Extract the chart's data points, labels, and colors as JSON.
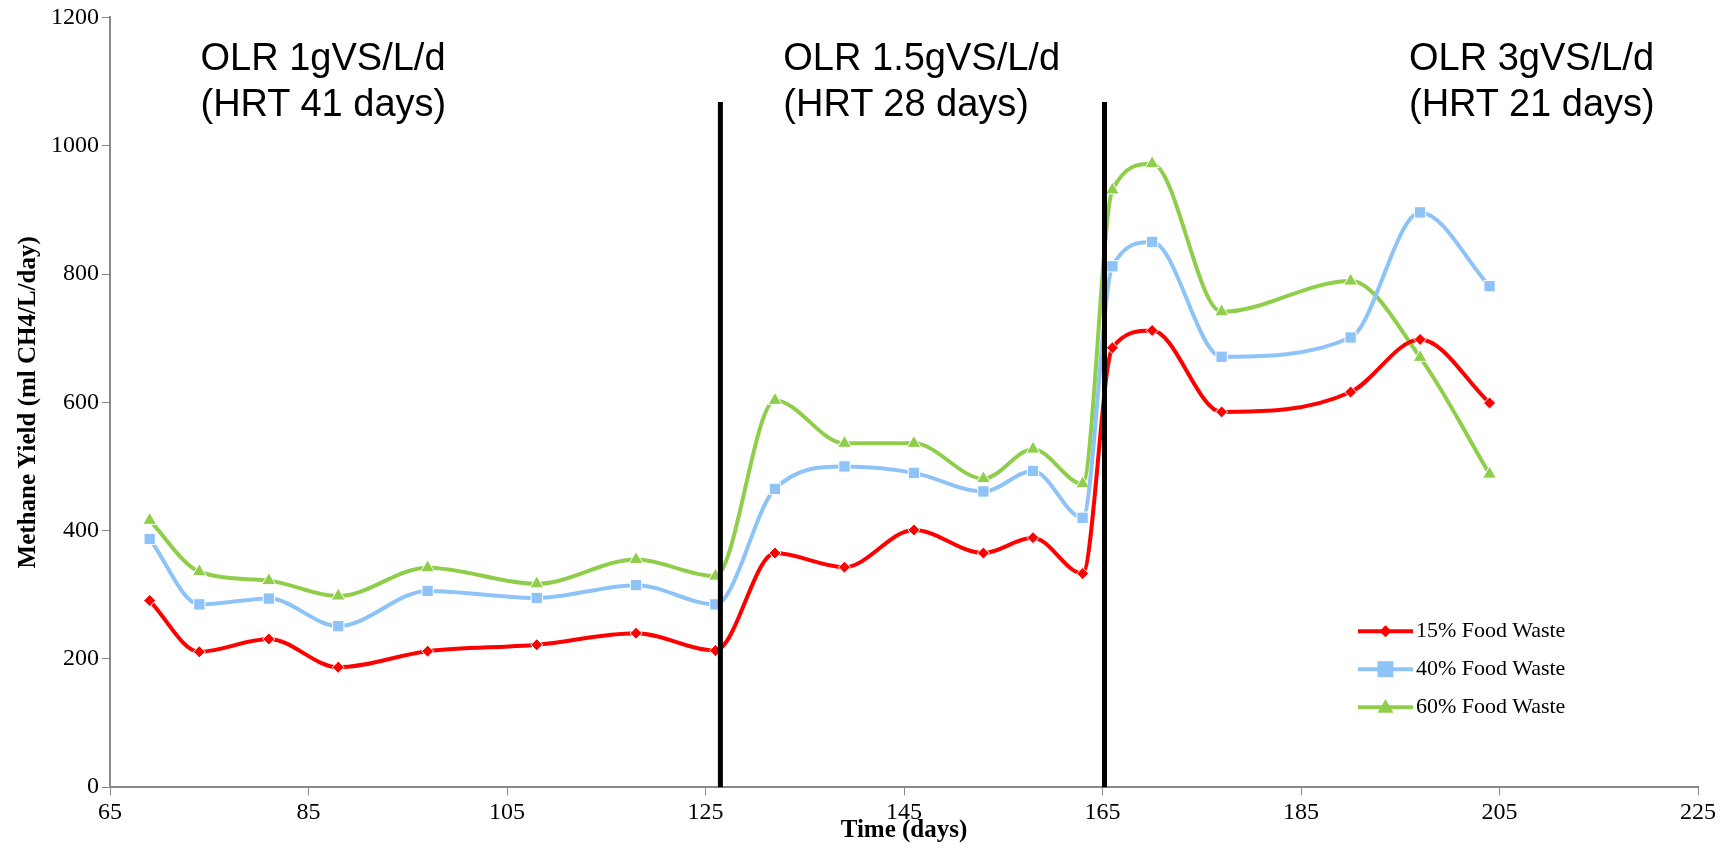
{
  "chart_data": {
    "type": "line",
    "xlabel": "Time (days)",
    "ylabel": "Methane Yield (ml CH4/L/day)",
    "x": [
      69,
      74,
      81,
      88,
      97,
      108,
      118,
      126,
      132,
      139,
      146,
      153,
      158,
      163,
      166,
      170,
      177,
      190,
      197,
      204
    ],
    "series": [
      {
        "name": "15% Food Waste",
        "color": "#ff0000",
        "marker": "diamond",
        "values": [
          291,
          211,
          231,
          187,
          212,
          222,
          240,
          213,
          365,
          343,
          401,
          365,
          389,
          333,
          685,
          712,
          585,
          616,
          698,
          599
        ]
      },
      {
        "name": "40% Food Waste",
        "color": "#8ec3f7",
        "marker": "square",
        "values": [
          387,
          285,
          294,
          251,
          306,
          295,
          315,
          285,
          465,
          500,
          490,
          461,
          493,
          420,
          812,
          850,
          671,
          701,
          896,
          781
        ]
      },
      {
        "name": "60% Food Waste",
        "color": "#8fce4a",
        "marker": "triangle",
        "values": [
          416,
          336,
          322,
          298,
          342,
          317,
          355,
          329,
          603,
          536,
          536,
          481,
          527,
          473,
          931,
          972,
          741,
          789,
          670,
          488
        ]
      }
    ],
    "xlim": [
      65,
      225
    ],
    "xticks": [
      65,
      85,
      105,
      125,
      145,
      165,
      185,
      205,
      225
    ],
    "ylim": [
      0,
      1200
    ],
    "yticks": [
      0,
      200,
      400,
      600,
      800,
      1000,
      1200
    ],
    "grid": false,
    "legend": "bottom right",
    "line_style": "solid",
    "ref_lines": [
      {
        "axis": "x",
        "value": 126.5,
        "color": "#000000"
      },
      {
        "axis": "x",
        "value": 165.2,
        "color": "#000000"
      }
    ],
    "annotations": [
      "OLR 1gVS/L/d\n(HRT 41 days)",
      "OLR 1.5gVS/L/d\n(HRT 28 days)",
      "OLR 3gVS/L/d\n(HRT 21 days)"
    ]
  }
}
